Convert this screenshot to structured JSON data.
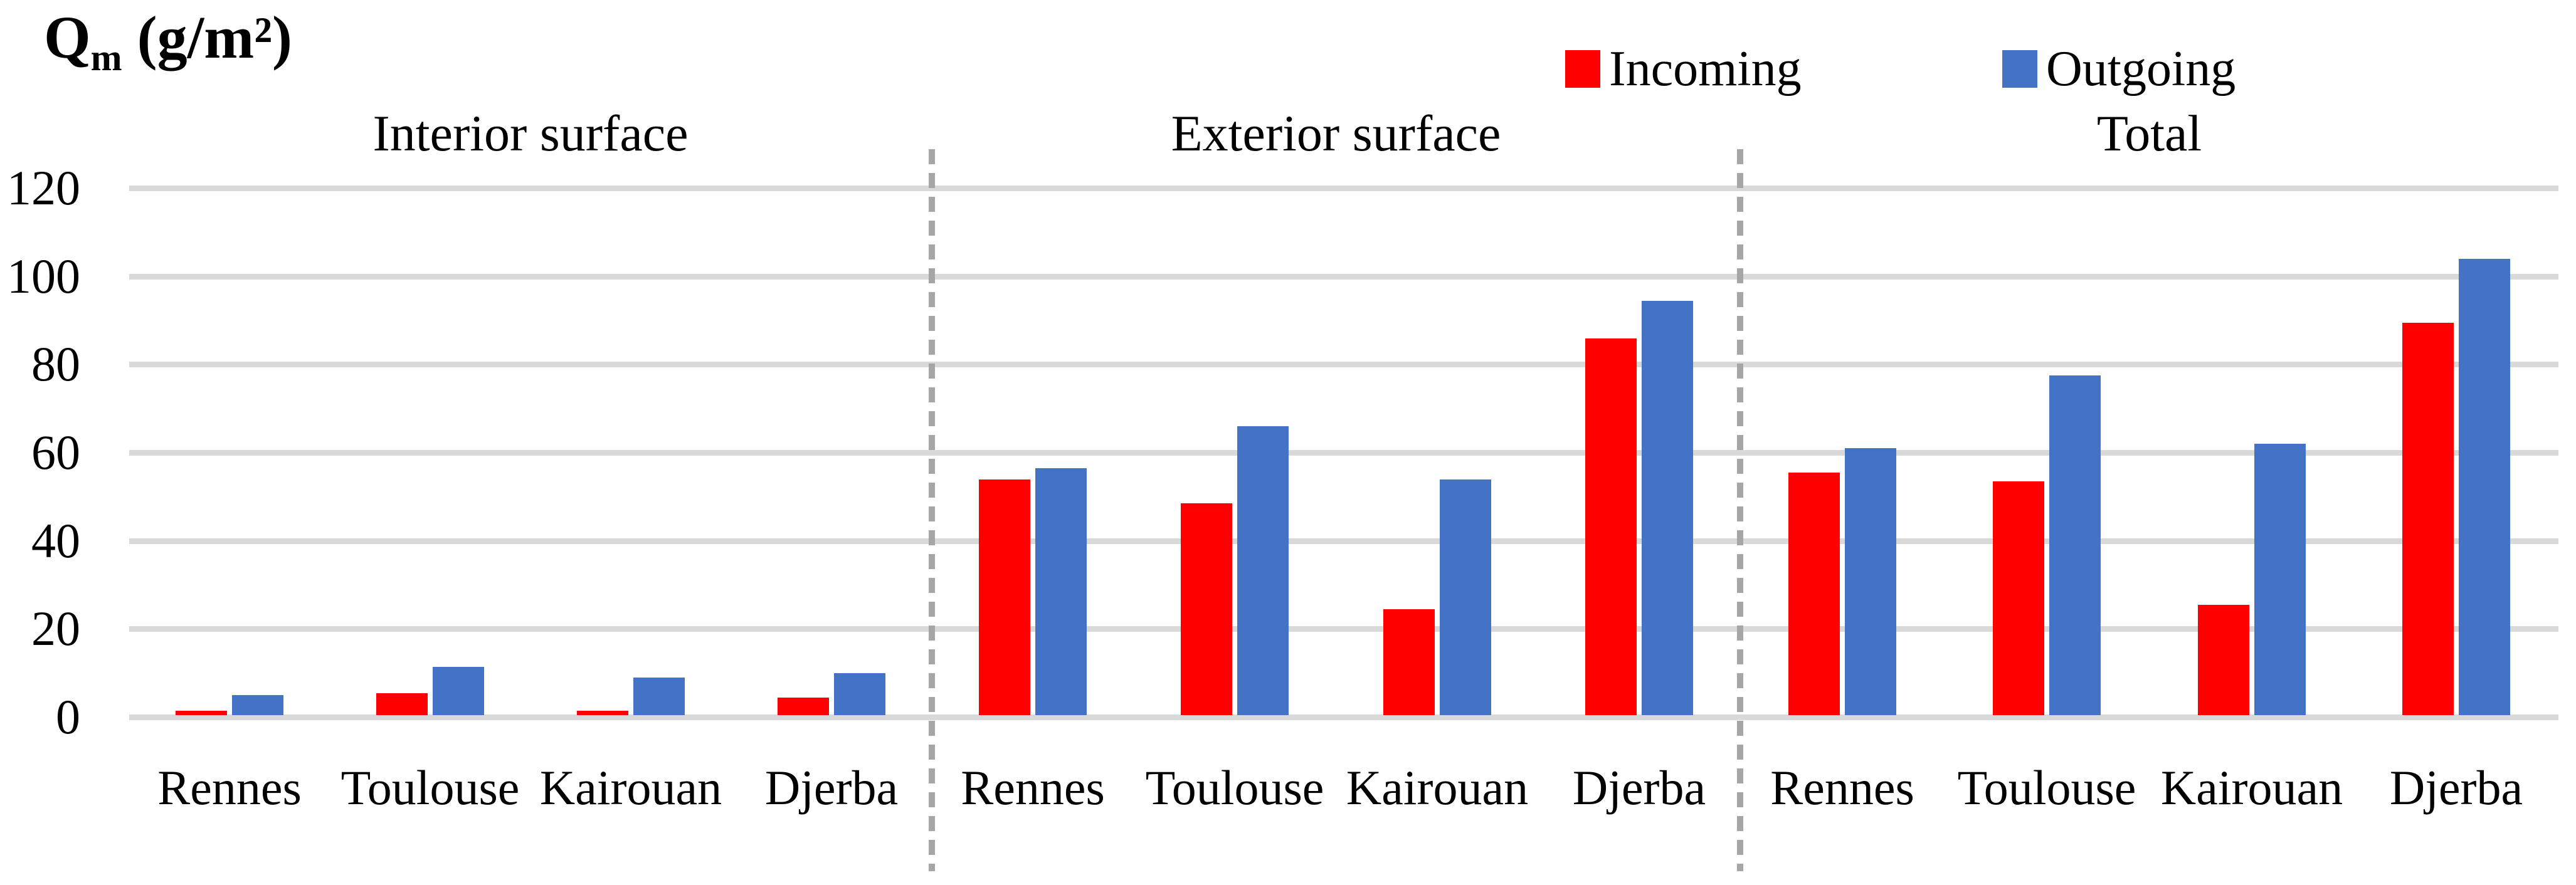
{
  "title": {
    "symbol": "Q",
    "subscript": "m",
    "units": " (g/m²)",
    "full_text": "Qm (g/m²)"
  },
  "legend": [
    {
      "label": "Incoming",
      "color": "#FF0000"
    },
    {
      "label": "Outgoing",
      "color": "#4472C4"
    }
  ],
  "chart_data": {
    "type": "bar",
    "title": "Qm (g/m²)",
    "ylabel": "Qm (g/m²)",
    "ylim": [
      0,
      120
    ],
    "yticks": [
      0,
      20,
      40,
      60,
      80,
      100,
      120
    ],
    "grid": true,
    "legend_position": "top",
    "categories": [
      "Rennes",
      "Toulouse",
      "Kairouan",
      "Djerba"
    ],
    "series_names": [
      "Incoming",
      "Outgoing"
    ],
    "panels": [
      {
        "title": "Interior surface",
        "series": [
          {
            "name": "Incoming",
            "values": [
              1,
              5,
              1,
              4
            ]
          },
          {
            "name": "Outgoing",
            "values": [
              4.5,
              11,
              8.5,
              9.5
            ]
          }
        ]
      },
      {
        "title": "Exterior surface",
        "series": [
          {
            "name": "Incoming",
            "values": [
              53.5,
              48,
              24,
              85.5
            ]
          },
          {
            "name": "Outgoing",
            "values": [
              56,
              65.5,
              53.5,
              94
            ]
          }
        ]
      },
      {
        "title": "Total",
        "series": [
          {
            "name": "Incoming",
            "values": [
              55,
              53,
              25,
              89
            ]
          },
          {
            "name": "Outgoing",
            "values": [
              60.5,
              77,
              61.5,
              103.5
            ]
          }
        ]
      }
    ]
  },
  "colors": {
    "incoming": "#FF0000",
    "outgoing": "#4472C4",
    "gridline": "#D9D9D9",
    "separator": "#A6A6A6",
    "text": "#000000"
  }
}
